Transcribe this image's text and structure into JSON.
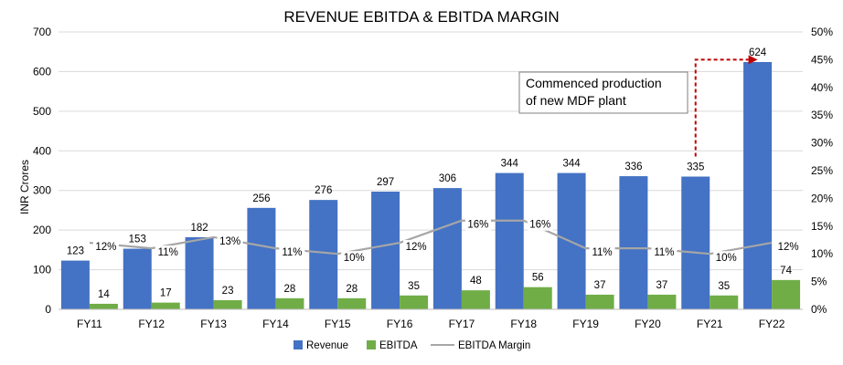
{
  "chart_data": {
    "type": "bar",
    "title": "REVENUE EBITDA & EBITDA MARGIN",
    "ylabel": "INR Crores",
    "y2label": "",
    "categories": [
      "FY11",
      "FY12",
      "FY13",
      "FY14",
      "FY15",
      "FY16",
      "FY17",
      "FY18",
      "FY19",
      "FY20",
      "FY21",
      "FY22"
    ],
    "series": [
      {
        "name": "Revenue",
        "type": "bar",
        "axis": "left",
        "color": "#4472C4",
        "values": [
          123,
          153,
          182,
          256,
          276,
          297,
          306,
          344,
          344,
          336,
          335,
          624
        ]
      },
      {
        "name": "EBITDA",
        "type": "bar",
        "axis": "left",
        "color": "#70AD47",
        "values": [
          14,
          17,
          23,
          28,
          28,
          35,
          48,
          56,
          37,
          37,
          35,
          74
        ]
      },
      {
        "name": "EBITDA Margin",
        "type": "line",
        "axis": "right",
        "color": "#A6A6A6",
        "values": [
          12,
          11,
          13,
          11,
          10,
          12,
          16,
          16,
          11,
          11,
          10,
          12
        ],
        "labels": [
          "12%",
          "11%",
          "13%",
          "11%",
          "10%",
          "12%",
          "16%",
          "16%",
          "11%",
          "11%",
          "10%",
          "12%"
        ]
      }
    ],
    "ylim": [
      0,
      700
    ],
    "yticks": [
      "0",
      "100",
      "200",
      "300",
      "400",
      "500",
      "600",
      "700"
    ],
    "y2lim": [
      0,
      50
    ],
    "y2ticks": [
      "0%",
      "5%",
      "10%",
      "15%",
      "20%",
      "25%",
      "30%",
      "35%",
      "40%",
      "45%",
      "50%"
    ],
    "grid": true,
    "legend_position": "bottom-center",
    "annotation": {
      "lines": [
        "Commenced production",
        "of new MDF plant"
      ],
      "arrow_color": "#C00000",
      "from_category": "FY21",
      "to_category": "FY22"
    }
  }
}
